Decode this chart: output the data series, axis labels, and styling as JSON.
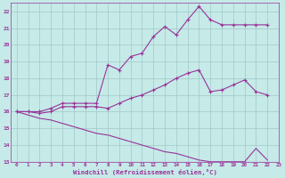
{
  "xlabel": "Windchill (Refroidissement éolien,°C)",
  "x_ticks": [
    0,
    1,
    2,
    3,
    4,
    5,
    6,
    7,
    8,
    9,
    10,
    11,
    12,
    13,
    14,
    15,
    16,
    17,
    18,
    19,
    20,
    21,
    22,
    23
  ],
  "ylim": [
    13,
    22.5
  ],
  "xlim": [
    -0.5,
    23
  ],
  "y_ticks": [
    13,
    14,
    15,
    16,
    17,
    18,
    19,
    20,
    21,
    22
  ],
  "background_color": "#c5eae8",
  "grid_color": "#a0c8c8",
  "line_color": "#993399",
  "series": {
    "upper": {
      "x": [
        0,
        1,
        2,
        3,
        4,
        5,
        6,
        7,
        8,
        9,
        10,
        11,
        12,
        13,
        14,
        15,
        16,
        17,
        18,
        19,
        20,
        21,
        22
      ],
      "y": [
        16.0,
        16.0,
        16.0,
        16.2,
        16.5,
        16.5,
        16.5,
        16.5,
        18.8,
        18.5,
        19.3,
        19.5,
        20.5,
        21.1,
        20.6,
        21.5,
        22.3,
        21.5,
        21.2,
        21.2,
        21.2,
        21.2,
        21.2
      ]
    },
    "middle": {
      "x": [
        0,
        1,
        2,
        3,
        4,
        5,
        6,
        7,
        8,
        9,
        10,
        11,
        12,
        13,
        14,
        15,
        16,
        17,
        18,
        19,
        20,
        21,
        22
      ],
      "y": [
        16.0,
        16.0,
        15.9,
        16.0,
        16.3,
        16.3,
        16.3,
        16.3,
        16.2,
        16.5,
        16.8,
        17.0,
        17.3,
        17.6,
        18.0,
        18.3,
        18.5,
        17.2,
        17.3,
        17.6,
        17.9,
        17.2,
        17.0
      ]
    },
    "lower": {
      "x": [
        0,
        1,
        2,
        3,
        4,
        5,
        6,
        7,
        8,
        9,
        10,
        11,
        12,
        13,
        14,
        15,
        16,
        17,
        18,
        19,
        20,
        21,
        22
      ],
      "y": [
        16.0,
        15.8,
        15.6,
        15.5,
        15.3,
        15.1,
        14.9,
        14.7,
        14.6,
        14.4,
        14.2,
        14.0,
        13.8,
        13.6,
        13.5,
        13.3,
        13.1,
        13.0,
        13.0,
        13.0,
        13.0,
        13.8,
        13.1
      ]
    }
  }
}
